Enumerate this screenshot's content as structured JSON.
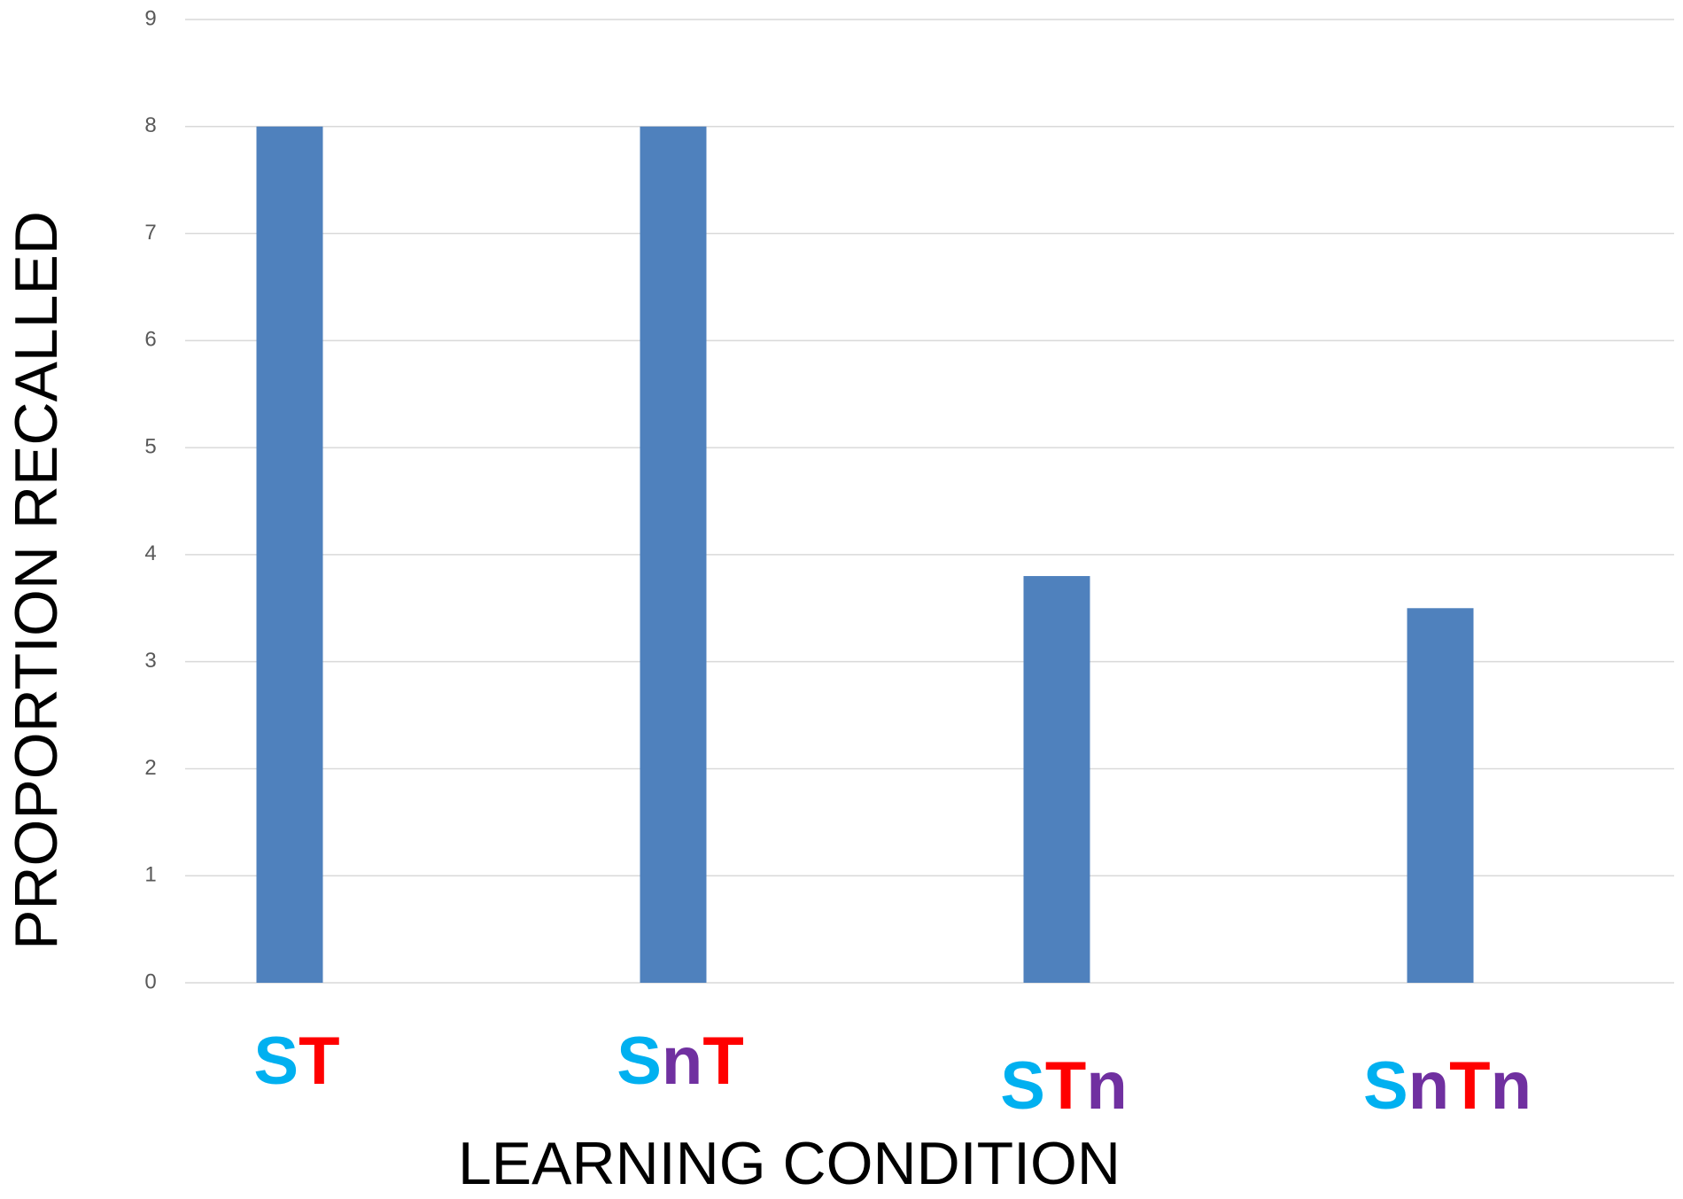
{
  "chart_data": {
    "type": "bar",
    "x_label": "LEARNING CONDITION",
    "y_label": "PROPORTION RECALLED",
    "categories": [
      "ST",
      "SnT",
      "STn",
      "SnTn"
    ],
    "values": [
      8,
      8,
      3.8,
      3.5
    ],
    "color": "#4f81bd",
    "letter_colors": {
      "S": "#00b0f0",
      "n": "#7030a0",
      "T": "#ff0000"
    },
    "ylim": [
      0,
      9
    ],
    "yticks": [
      0,
      1,
      2,
      3,
      4,
      5,
      6,
      7,
      8,
      9
    ],
    "grid": true
  }
}
